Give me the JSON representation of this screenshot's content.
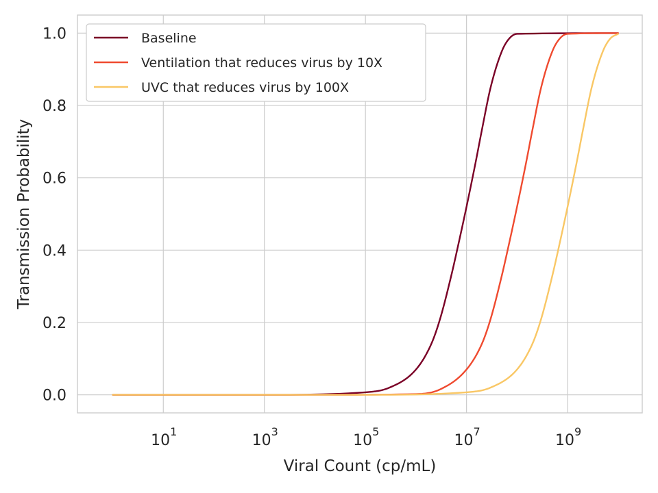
{
  "chart_data": {
    "type": "line",
    "title": "",
    "xlabel": "Viral Count (cp/mL)",
    "ylabel": "Transmission Probability",
    "xscale": "log",
    "xlim": [
      0.2,
      30000000000
    ],
    "ylim": [
      -0.05,
      1.05
    ],
    "x_ticks": [
      {
        "value": 10,
        "base": "10",
        "exp": "1"
      },
      {
        "value": 1000,
        "base": "10",
        "exp": "3"
      },
      {
        "value": 100000,
        "base": "10",
        "exp": "5"
      },
      {
        "value": 10000000,
        "base": "10",
        "exp": "7"
      },
      {
        "value": 1000000000,
        "base": "10",
        "exp": "9"
      }
    ],
    "y_ticks": [
      {
        "value": 0.0,
        "label": "0.0"
      },
      {
        "value": 0.2,
        "label": "0.2"
      },
      {
        "value": 0.4,
        "label": "0.4"
      },
      {
        "value": 0.6,
        "label": "0.6"
      },
      {
        "value": 0.8,
        "label": "0.8"
      },
      {
        "value": 1.0,
        "label": "1.0"
      }
    ],
    "grid": true,
    "legend_position": "top-left",
    "series": [
      {
        "name": "Baseline",
        "color": "#7a0026",
        "points": [
          [
            1,
            0.0
          ],
          [
            1000,
            0.0
          ],
          [
            100000,
            0.007
          ],
          [
            300000,
            0.02
          ],
          [
            1000000,
            0.07
          ],
          [
            2000000,
            0.14
          ],
          [
            3000000,
            0.21
          ],
          [
            5000000,
            0.33
          ],
          [
            7000000,
            0.42
          ],
          [
            10000000,
            0.52
          ],
          [
            15000000,
            0.64
          ],
          [
            20000000,
            0.73
          ],
          [
            30000000,
            0.85
          ],
          [
            50000000,
            0.95
          ],
          [
            70000000,
            0.985
          ],
          [
            100000000,
            0.998
          ],
          [
            10000000000,
            1.0
          ]
        ]
      },
      {
        "name": "Ventilation that reduces virus by 10X",
        "color": "#ef4a2f",
        "points": [
          [
            1,
            0.0
          ],
          [
            10000,
            0.0
          ],
          [
            1000000,
            0.002
          ],
          [
            3000000,
            0.015
          ],
          [
            10000000,
            0.07
          ],
          [
            20000000,
            0.14
          ],
          [
            30000000,
            0.21
          ],
          [
            50000000,
            0.33
          ],
          [
            70000000,
            0.42
          ],
          [
            100000000,
            0.52
          ],
          [
            150000000,
            0.64
          ],
          [
            200000000,
            0.73
          ],
          [
            300000000,
            0.85
          ],
          [
            500000000,
            0.95
          ],
          [
            700000000,
            0.985
          ],
          [
            1000000000,
            0.998
          ],
          [
            10000000000,
            1.0
          ]
        ]
      },
      {
        "name": "UVC that reduces virus by 100X",
        "color": "#f9c765",
        "points": [
          [
            1,
            0.0
          ],
          [
            100000,
            0.0
          ],
          [
            10000000,
            0.007
          ],
          [
            30000000,
            0.02
          ],
          [
            100000000,
            0.07
          ],
          [
            200000000,
            0.14
          ],
          [
            300000000,
            0.21
          ],
          [
            500000000,
            0.33
          ],
          [
            700000000,
            0.42
          ],
          [
            1000000000,
            0.52
          ],
          [
            1500000000,
            0.64
          ],
          [
            2000000000,
            0.73
          ],
          [
            3000000000,
            0.85
          ],
          [
            5000000000,
            0.95
          ],
          [
            7000000000,
            0.985
          ],
          [
            10000000000,
            0.998
          ]
        ]
      }
    ]
  }
}
